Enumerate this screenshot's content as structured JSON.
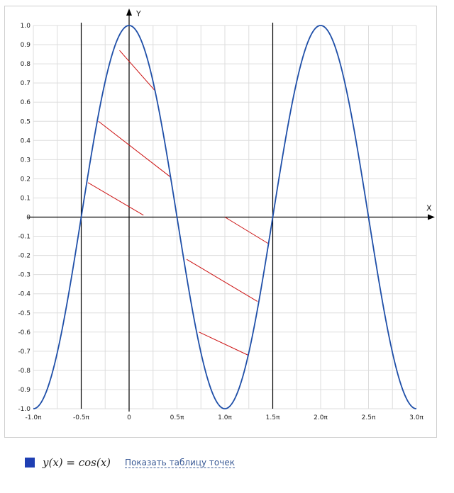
{
  "chart_data": {
    "type": "line",
    "function": "cos(x)",
    "xlabel": "X",
    "ylabel": "Y",
    "xlim_pi": [
      -1.0,
      3.0
    ],
    "ylim": [
      -1.0,
      1.0
    ],
    "x_ticks": [
      {
        "value": -1.0,
        "label": "-1.0π"
      },
      {
        "value": -0.5,
        "label": "-0.5π"
      },
      {
        "value": 0,
        "label": "0"
      },
      {
        "value": 0.5,
        "label": "0.5π"
      },
      {
        "value": 1.0,
        "label": "1.0π"
      },
      {
        "value": 1.5,
        "label": "1.5π"
      },
      {
        "value": 2.0,
        "label": "2.0π"
      },
      {
        "value": 2.5,
        "label": "2.5π"
      },
      {
        "value": 3.0,
        "label": "3.0π"
      }
    ],
    "y_ticks": [
      {
        "value": 1.0,
        "label": "1.0"
      },
      {
        "value": 0.9,
        "label": "0.9"
      },
      {
        "value": 0.8,
        "label": "0.8"
      },
      {
        "value": 0.7,
        "label": "0.7"
      },
      {
        "value": 0.6,
        "label": "0.6"
      },
      {
        "value": 0.5,
        "label": "0.5"
      },
      {
        "value": 0.4,
        "label": "0.4"
      },
      {
        "value": 0.3,
        "label": "0.3"
      },
      {
        "value": 0.2,
        "label": "0.2"
      },
      {
        "value": 0.1,
        "label": "0.1"
      },
      {
        "value": 0,
        "label": "0"
      },
      {
        "value": -0.1,
        "label": "-0.1"
      },
      {
        "value": -0.2,
        "label": "-0.2"
      },
      {
        "value": -0.3,
        "label": "-0.3"
      },
      {
        "value": -0.4,
        "label": "-0.4"
      },
      {
        "value": -0.5,
        "label": "-0.5"
      },
      {
        "value": -0.6,
        "label": "-0.6"
      },
      {
        "value": -0.7,
        "label": "-0.7"
      },
      {
        "value": -0.8,
        "label": "-0.8"
      },
      {
        "value": -0.9,
        "label": "-0.9"
      },
      {
        "value": -1.0,
        "label": "-1.0"
      }
    ],
    "boundary_lines_pi": [
      -0.5,
      1.5
    ],
    "hatch_segments": [
      {
        "x1_pi": -0.1,
        "y1": 0.87,
        "x2_pi": 0.27,
        "y2": 0.66
      },
      {
        "x1_pi": -0.32,
        "y1": 0.5,
        "x2_pi": 0.43,
        "y2": 0.21
      },
      {
        "x1_pi": -0.43,
        "y1": 0.18,
        "x2_pi": 0.15,
        "y2": 0.01
      },
      {
        "x1_pi": 1.0,
        "y1": 0.0,
        "x2_pi": 1.46,
        "y2": -0.14
      },
      {
        "x1_pi": 0.6,
        "y1": -0.22,
        "x2_pi": 1.34,
        "y2": -0.44
      },
      {
        "x1_pi": 0.73,
        "y1": -0.6,
        "x2_pi": 1.24,
        "y2": -0.72
      }
    ],
    "grid": true,
    "line_color": "#1f4fa8",
    "hatch_color": "#cc1111"
  },
  "legend": {
    "swatch_color": "#1f3fb3",
    "formula": "y(x) = cos(x)",
    "points_link": "Показать таблицу точек"
  }
}
